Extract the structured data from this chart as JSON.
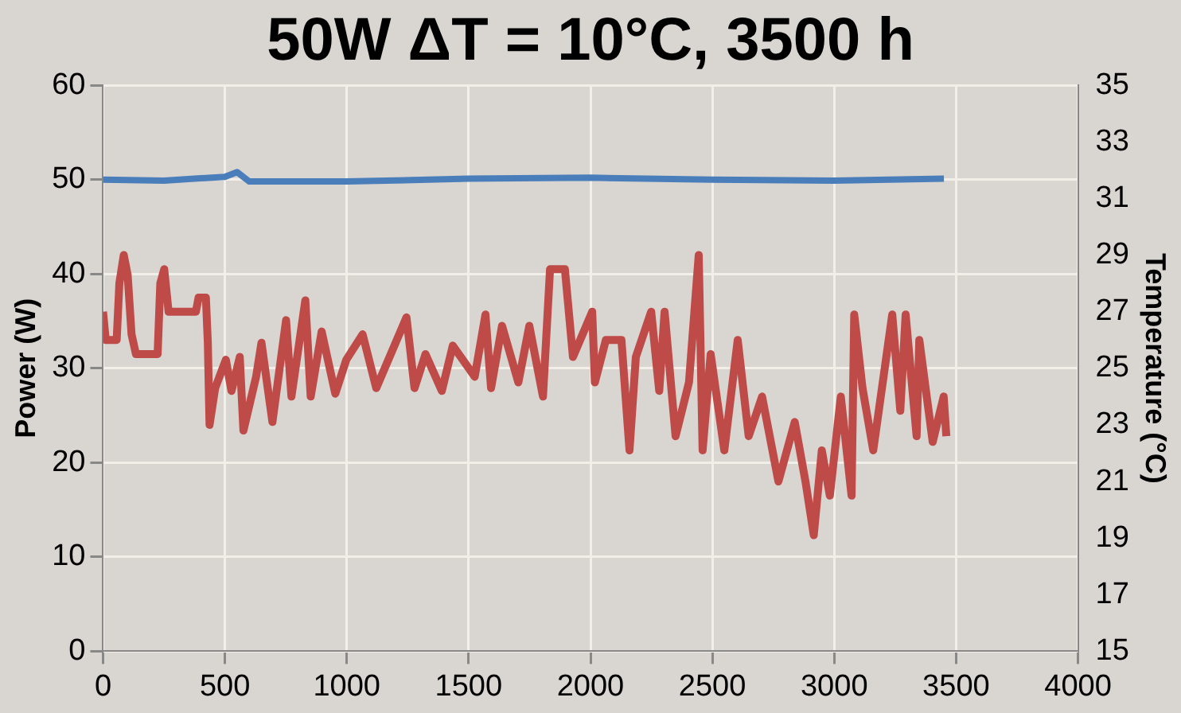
{
  "chart_data": {
    "type": "line",
    "title": "50W ΔT = 10°C, 3500 h",
    "ylabel": "Power (W)",
    "y2label": "Temperature (°C)",
    "xlim": [
      0,
      4000
    ],
    "xticks": [
      0,
      500,
      1000,
      1500,
      2000,
      2500,
      3000,
      3500,
      4000
    ],
    "ylim": [
      0,
      60
    ],
    "yticks": [
      0,
      10,
      20,
      30,
      40,
      50,
      60
    ],
    "y2lim": [
      15,
      35
    ],
    "y2ticks": [
      15,
      17,
      19,
      21,
      23,
      25,
      27,
      29,
      31,
      33,
      35
    ],
    "grid": true,
    "legend": false,
    "marker": "none",
    "line_style": "solid",
    "series": [
      {
        "color": "#4a7ebb",
        "x": [
          0,
          250,
          500,
          550,
          600,
          1000,
          1500,
          2000,
          2500,
          3000,
          3450
        ],
        "values": [
          50,
          49.9,
          50.3,
          50.8,
          49.8,
          49.8,
          50.1,
          50.2,
          50,
          49.9,
          50.1
        ]
      },
      {
        "color": "#be4b48",
        "axis": "y2",
        "x": [
          0,
          11,
          56,
          67,
          85,
          101,
          117,
          135,
          224,
          235,
          251,
          269,
          381,
          392,
          422,
          430,
          437,
          460,
          504,
          527,
          561,
          576,
          628,
          650,
          695,
          751,
          773,
          830,
          852,
          897,
          953,
          998,
          1065,
          1121,
          1245,
          1278,
          1323,
          1390,
          1435,
          1525,
          1569,
          1592,
          1637,
          1704,
          1749,
          1805,
          1834,
          1895,
          1928,
          2007,
          2018,
          2063,
          2127,
          2160,
          2186,
          2249,
          2282,
          2304,
          2349,
          2404,
          2444,
          2460,
          2493,
          2549,
          2604,
          2649,
          2704,
          2771,
          2838,
          2882,
          2916,
          2949,
          2982,
          3027,
          3071,
          3082,
          3116,
          3160,
          3238,
          3271,
          3293,
          3338,
          3349,
          3404,
          3449,
          3460
        ],
        "values": [
          27.0,
          26.0,
          26.0,
          28.0,
          29.0,
          28.3,
          26.2,
          25.5,
          25.5,
          28.0,
          28.5,
          27.0,
          27.0,
          27.5,
          27.5,
          25.9,
          23.0,
          24.3,
          25.3,
          24.2,
          25.4,
          22.8,
          24.7,
          25.9,
          23.1,
          26.7,
          24.0,
          27.4,
          24.0,
          26.3,
          24.1,
          25.3,
          26.2,
          24.3,
          26.8,
          24.3,
          25.5,
          24.2,
          25.8,
          24.7,
          26.9,
          24.3,
          26.5,
          24.5,
          26.5,
          24.0,
          28.5,
          28.5,
          25.4,
          27.0,
          24.5,
          26.0,
          26.0,
          22.1,
          25.4,
          27.0,
          24.2,
          27.0,
          22.6,
          24.5,
          29.0,
          22.1,
          25.5,
          22.1,
          26.0,
          22.6,
          24.0,
          21.0,
          23.1,
          21.0,
          19.1,
          22.1,
          20.5,
          24.0,
          20.5,
          26.9,
          24.3,
          22.1,
          26.9,
          23.5,
          26.9,
          22.6,
          26.0,
          22.4,
          24.0,
          22.6
        ]
      }
    ]
  }
}
